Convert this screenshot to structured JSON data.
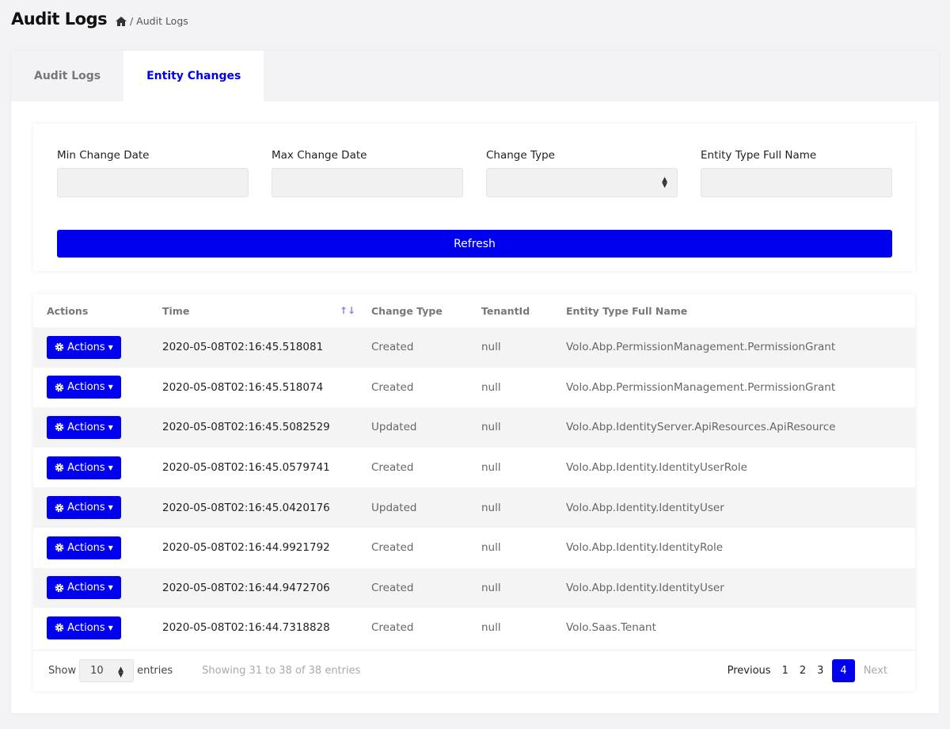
{
  "header": {
    "title": "Audit Logs",
    "breadcrumb": "/ Audit Logs"
  },
  "tabs": [
    {
      "label": "Audit Logs",
      "active": false
    },
    {
      "label": "Entity Changes",
      "active": true
    }
  ],
  "filters": {
    "min_date_label": "Min Change Date",
    "min_date_value": "",
    "max_date_label": "Max Change Date",
    "max_date_value": "",
    "change_type_label": "Change Type",
    "change_type_value": "",
    "entity_label": "Entity Type Full Name",
    "entity_value": "",
    "refresh_label": "Refresh"
  },
  "table": {
    "columns": [
      "Actions",
      "Time",
      "Change Type",
      "TenantId",
      "Entity Type Full Name"
    ],
    "action_label": "Actions",
    "rows": [
      {
        "time": "2020-05-08T02:16:45.518081",
        "type": "Created",
        "tenant": "null",
        "entity": "Volo.Abp.PermissionManagement.PermissionGrant"
      },
      {
        "time": "2020-05-08T02:16:45.518074",
        "type": "Created",
        "tenant": "null",
        "entity": "Volo.Abp.PermissionManagement.PermissionGrant"
      },
      {
        "time": "2020-05-08T02:16:45.5082529",
        "type": "Updated",
        "tenant": "null",
        "entity": "Volo.Abp.IdentityServer.ApiResources.ApiResource"
      },
      {
        "time": "2020-05-08T02:16:45.0579741",
        "type": "Created",
        "tenant": "null",
        "entity": "Volo.Abp.Identity.IdentityUserRole"
      },
      {
        "time": "2020-05-08T02:16:45.0420176",
        "type": "Updated",
        "tenant": "null",
        "entity": "Volo.Abp.Identity.IdentityUser"
      },
      {
        "time": "2020-05-08T02:16:44.9921792",
        "type": "Created",
        "tenant": "null",
        "entity": "Volo.Abp.Identity.IdentityRole"
      },
      {
        "time": "2020-05-08T02:16:44.9472706",
        "type": "Created",
        "tenant": "null",
        "entity": "Volo.Abp.Identity.IdentityUser"
      },
      {
        "time": "2020-05-08T02:16:44.7318828",
        "type": "Created",
        "tenant": "null",
        "entity": "Volo.Saas.Tenant"
      }
    ]
  },
  "footer": {
    "show": "Show",
    "page_size": "10",
    "entries": "entries",
    "info": "Showing 31 to 38 of 38 entries",
    "previous": "Previous",
    "pages": [
      "1",
      "2",
      "3",
      "4"
    ],
    "current_page": "4",
    "next": "Next"
  },
  "colors": {
    "accent": "#0000ee",
    "background": "#f3f3f6"
  }
}
